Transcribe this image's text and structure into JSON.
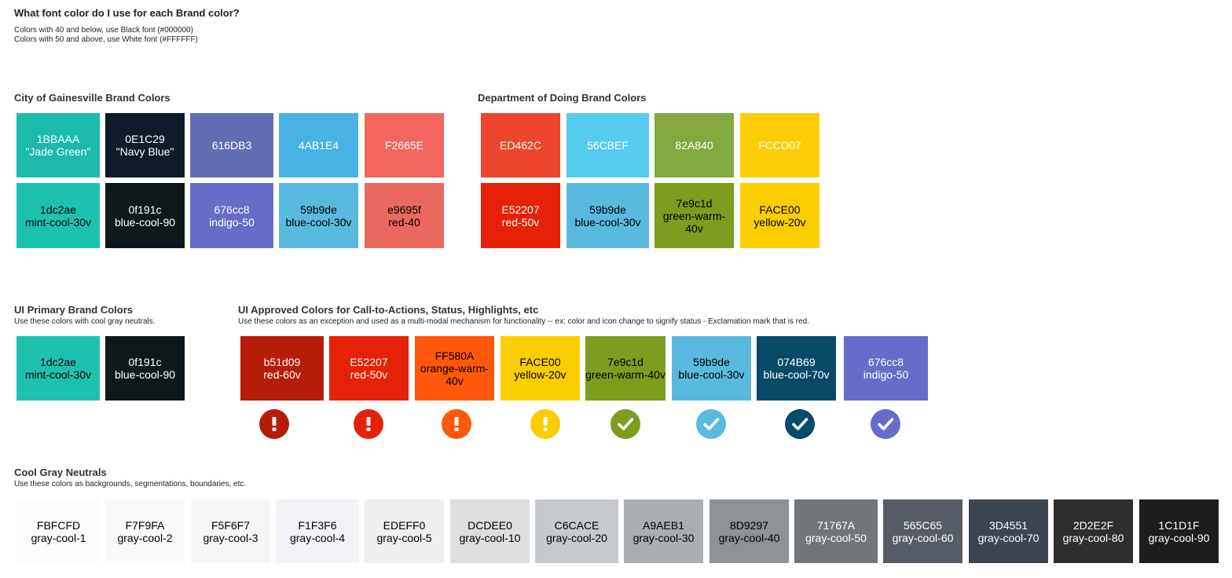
{
  "intro": {
    "title": "What font color do I use for each Brand color?",
    "line1": "Colors with 40 and below, use Black font (#000000)",
    "line2": "Colors with 50 and above, use White font (#FFFFFF)"
  },
  "city": {
    "title": "City of Gainesville Brand Colors",
    "top": [
      {
        "l1": "1BBAAA",
        "l2": "\"Jade Green\"",
        "bg": "#1BBAAA",
        "fg": "#ffffff"
      },
      {
        "l1": "0E1C29",
        "l2": "\"Navy Blue\"",
        "bg": "#0E1C29",
        "fg": "#ffffff"
      },
      {
        "l1": "616DB3",
        "l2": "",
        "bg": "#616DB3",
        "fg": "#ffffff"
      },
      {
        "l1": "4AB1E4",
        "l2": "",
        "bg": "#4AB1E4",
        "fg": "#ffffff"
      },
      {
        "l1": "F2665E",
        "l2": "",
        "bg": "#F2665E",
        "fg": "#ffffff"
      }
    ],
    "bottom": [
      {
        "l1": "1dc2ae",
        "l2": "mint-cool-30v",
        "bg": "#1dc2ae",
        "fg": "#000000"
      },
      {
        "l1": "0f191c",
        "l2": "blue-cool-90",
        "bg": "#0f191c",
        "fg": "#ffffff"
      },
      {
        "l1": "676cc8",
        "l2": "indigo-50",
        "bg": "#676cc8",
        "fg": "#ffffff"
      },
      {
        "l1": "59b9de",
        "l2": "blue-cool-30v",
        "bg": "#59b9de",
        "fg": "#000000"
      },
      {
        "l1": "e9695f",
        "l2": "red-40",
        "bg": "#e9695f",
        "fg": "#000000"
      }
    ]
  },
  "dept": {
    "title": "Department of Doing Brand Colors",
    "top": [
      {
        "l1": "ED462C",
        "l2": "",
        "bg": "#ED462C",
        "fg": "#ffffff"
      },
      {
        "l1": "56CBEF",
        "l2": "",
        "bg": "#56CBEF",
        "fg": "#ffffff"
      },
      {
        "l1": "82A840",
        "l2": "",
        "bg": "#82A840",
        "fg": "#ffffff"
      },
      {
        "l1": "FCCD07",
        "l2": "",
        "bg": "#FCCD07",
        "fg": "#ffffff"
      }
    ],
    "bottom": [
      {
        "l1": "E52207",
        "l2": "red-50v",
        "bg": "#E52207",
        "fg": "#ffffff"
      },
      {
        "l1": "59b9de",
        "l2": "blue-cool-30v",
        "bg": "#59b9de",
        "fg": "#000000"
      },
      {
        "l1": "7e9c1d",
        "l2": "green-warm-40v",
        "bg": "#7e9c1d",
        "fg": "#000000"
      },
      {
        "l1": "FACE00",
        "l2": "yellow-20v",
        "bg": "#FACE00",
        "fg": "#000000"
      }
    ]
  },
  "primary": {
    "title": "UI Primary Brand Colors",
    "subtitle": "Use these colors with cool gray neutrals.",
    "swatches": [
      {
        "l1": "1dc2ae",
        "l2": "mint-cool-30v",
        "bg": "#1dc2ae",
        "fg": "#000000"
      },
      {
        "l1": "0f191c",
        "l2": "blue-cool-90",
        "bg": "#0f191c",
        "fg": "#ffffff"
      }
    ]
  },
  "approved": {
    "title": "UI Approved Colors for Call-to-Actions, Status,  Highlights, etc",
    "subtitle": "Use these colors as an exception and used as a multi-modal mechanism for functionality -- ex: color and icon change to signify status - Exclamation mark that is red.",
    "swatches": [
      {
        "l1": "b51d09",
        "l2": "red-60v",
        "l3": "",
        "bg": "#b51d09",
        "fg": "#ffffff",
        "icon": "exclamation-icon"
      },
      {
        "l1": "E52207",
        "l2": "red-50v",
        "l3": "",
        "bg": "#E52207",
        "fg": "#ffffff",
        "icon": "exclamation-icon"
      },
      {
        "l1": "FF580A",
        "l2": "orange-warm-",
        "l3": "40v",
        "bg": "#FF580A",
        "fg": "#000000",
        "icon": "exclamation-icon"
      },
      {
        "l1": "FACE00",
        "l2": "yellow-20v",
        "l3": "",
        "bg": "#FACE00",
        "fg": "#000000",
        "icon": "exclamation-icon"
      },
      {
        "l1": "7e9c1d",
        "l2": "green-warm-40v",
        "l3": "",
        "bg": "#7e9c1d",
        "fg": "#000000",
        "icon": "checkmark-icon"
      },
      {
        "l1": "59b9de",
        "l2": "blue-cool-30v",
        "l3": "",
        "bg": "#59b9de",
        "fg": "#000000",
        "icon": "checkmark-icon"
      },
      {
        "l1": "074B69",
        "l2": "blue-cool-70v",
        "l3": "",
        "bg": "#074B69",
        "fg": "#ffffff",
        "icon": "checkmark-icon"
      },
      {
        "l1": "676cc8",
        "l2": "indigo-50",
        "l3": "",
        "bg": "#676cc8",
        "fg": "#ffffff",
        "icon": "checkmark-icon"
      }
    ]
  },
  "grays": {
    "title": "Cool Gray Neutrals",
    "subtitle": "Use these colors as backgrounds, segmentations, boundaries, etc.",
    "swatches": [
      {
        "l1": "FBFCFD",
        "l2": "gray-cool-1",
        "bg": "#FBFCFD",
        "fg": "#000000"
      },
      {
        "l1": "F7F9FA",
        "l2": "gray-cool-2",
        "bg": "#F7F9FA",
        "fg": "#000000"
      },
      {
        "l1": "F5F6F7",
        "l2": "gray-cool-3",
        "bg": "#F5F6F7",
        "fg": "#000000"
      },
      {
        "l1": "F1F3F6",
        "l2": "gray-cool-4",
        "bg": "#F1F3F6",
        "fg": "#000000"
      },
      {
        "l1": "EDEFF0",
        "l2": "gray-cool-5",
        "bg": "#EDEFF0",
        "fg": "#000000"
      },
      {
        "l1": "DCDEE0",
        "l2": "gray-cool-10",
        "bg": "#DCDEE0",
        "fg": "#000000"
      },
      {
        "l1": "C6CACE",
        "l2": "gray-cool-20",
        "bg": "#C6CACE",
        "fg": "#000000"
      },
      {
        "l1": "A9AEB1",
        "l2": "gray-cool-30",
        "bg": "#A9AEB1",
        "fg": "#000000"
      },
      {
        "l1": "8D9297",
        "l2": "gray-cool-40",
        "bg": "#8D9297",
        "fg": "#000000"
      },
      {
        "l1": "71767A",
        "l2": "gray-cool-50",
        "bg": "#71767A",
        "fg": "#ffffff"
      },
      {
        "l1": "565C65",
        "l2": "gray-cool-60",
        "bg": "#565C65",
        "fg": "#ffffff"
      },
      {
        "l1": "3D4551",
        "l2": "gray-cool-70",
        "bg": "#3D4551",
        "fg": "#ffffff"
      },
      {
        "l1": "2D2E2F",
        "l2": "gray-cool-80",
        "bg": "#2D2E2F",
        "fg": "#ffffff"
      },
      {
        "l1": "1C1D1F",
        "l2": "gray-cool-90",
        "bg": "#1C1D1F",
        "fg": "#ffffff"
      }
    ]
  }
}
